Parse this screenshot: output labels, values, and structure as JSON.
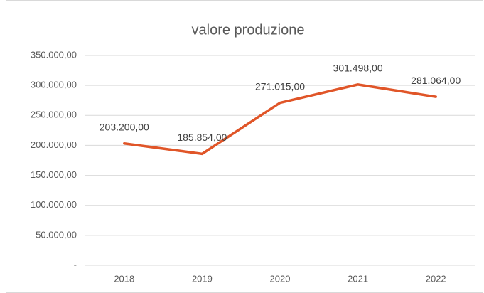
{
  "chart_data": {
    "type": "line",
    "title": "valore produzione",
    "categories": [
      "2018",
      "2019",
      "2020",
      "2021",
      "2022"
    ],
    "series": [
      {
        "name": "valore produzione",
        "color": "#e05528",
        "values": [
          203200,
          185854,
          271015,
          301498,
          281064
        ],
        "value_labels": [
          "203.200,00",
          "185.854,00",
          "271.015,00",
          "301.498,00",
          "281.064,00"
        ]
      }
    ],
    "ylim": [
      0,
      350000
    ],
    "yticks": [
      {
        "value": 0,
        "label": "-"
      },
      {
        "value": 50000,
        "label": "50.000,00"
      },
      {
        "value": 100000,
        "label": "100.000,00"
      },
      {
        "value": 150000,
        "label": "150.000,00"
      },
      {
        "value": 200000,
        "label": "200.000,00"
      },
      {
        "value": 250000,
        "label": "250.000,00"
      },
      {
        "value": 300000,
        "label": "300.000,00"
      },
      {
        "value": 350000,
        "label": "350.000,00"
      }
    ],
    "grid": true
  }
}
